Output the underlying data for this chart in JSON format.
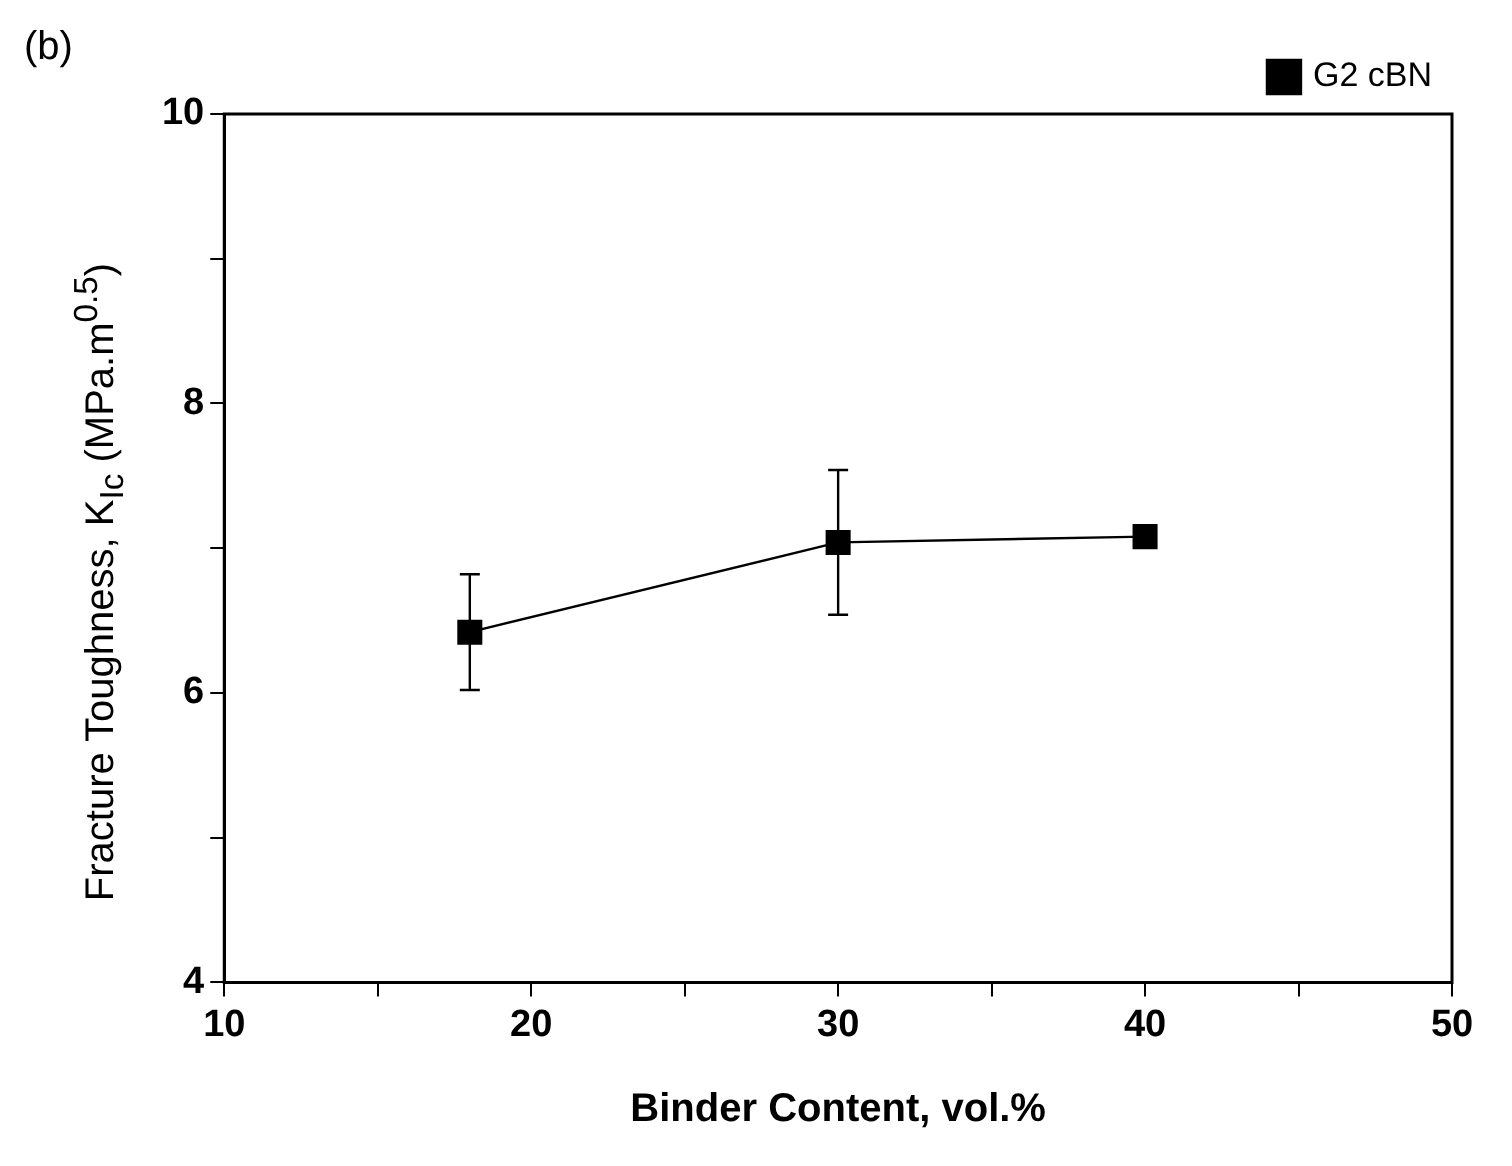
{
  "chart_data": {
    "type": "line",
    "xlabel": "Binder Content, vol.%",
    "ylabel": "Fracture Toughness, K$_{Ic}$ (MPa.m$^{0.5}$)",
    "annotations": [
      "(b)"
    ],
    "x": [
      18,
      30,
      40
    ],
    "series": [
      {
        "name": "G2 cBN",
        "color": "#000000",
        "values": [
          6.42,
          7.04,
          7.08
        ],
        "errors": [
          0.4,
          0.5,
          null
        ]
      }
    ],
    "xlim": [
      10,
      50
    ],
    "xticks": [
      10,
      {
        "value": 15,
        "label": null
      },
      20,
      {
        "value": 25,
        "label": null
      },
      30,
      {
        "value": 35,
        "label": null
      },
      40,
      {
        "value": 45,
        "label": null
      },
      50
    ],
    "ylim": [
      4,
      10
    ],
    "yticks": [
      4,
      {
        "value": 5,
        "label": null
      },
      6,
      {
        "value": 7,
        "label": null
      },
      8,
      {
        "value": 9,
        "label": null
      },
      10
    ],
    "grid": false,
    "legend": "top right",
    "marker": "square",
    "line_style": "solid"
  }
}
